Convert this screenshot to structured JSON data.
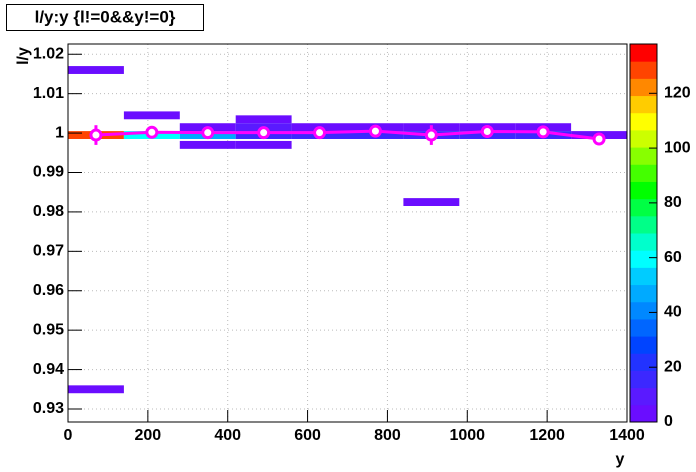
{
  "chart_data": {
    "type": "heatmap",
    "title": "l/y:y {l!=0&&y!=0}",
    "x_label": "y",
    "y_label": "l/y",
    "xlim": [
      0,
      1400
    ],
    "xticks": [
      0,
      200,
      400,
      600,
      800,
      1000,
      1200,
      1400
    ],
    "ylim": [
      0.9267,
      1.0226
    ],
    "yticks": [
      0.93,
      0.94,
      0.95,
      0.96,
      0.97,
      0.98,
      0.99,
      1,
      1.01,
      1.02
    ],
    "zlim": [
      0,
      138
    ],
    "zticks": [
      0,
      20,
      40,
      60,
      80,
      100,
      120
    ],
    "grid": true,
    "palette": [
      "#6a0dff",
      "#5a1aff",
      "#3c28ff",
      "#2233ff",
      "#0044ff",
      "#0066ff",
      "#0088ff",
      "#00aaff",
      "#00ccff",
      "#00ffff",
      "#00ffcc",
      "#00ff88",
      "#00ff44",
      "#00ff00",
      "#44ff00",
      "#88ff00",
      "#ccff00",
      "#ffff00",
      "#ffcc00",
      "#ff8800",
      "#ff4400",
      "#ff0000"
    ],
    "cells": [
      {
        "x0": 0,
        "x1": 140,
        "y0": 0.934,
        "y1": 0.936,
        "z": 2
      },
      {
        "x0": 0,
        "x1": 140,
        "y0": 1.015,
        "y1": 1.017,
        "z": 2
      },
      {
        "x0": 0,
        "x1": 140,
        "y0": 0.9985,
        "y1": 1.0005,
        "z": 130
      },
      {
        "x0": 140,
        "x1": 280,
        "y0": 1.0035,
        "y1": 1.0055,
        "z": 3
      },
      {
        "x0": 140,
        "x1": 280,
        "y0": 0.9985,
        "y1": 1.0005,
        "z": 62
      },
      {
        "x0": 280,
        "x1": 420,
        "y0": 1.0005,
        "y1": 1.0025,
        "z": 5
      },
      {
        "x0": 280,
        "x1": 420,
        "y0": 0.9985,
        "y1": 1.0005,
        "z": 45
      },
      {
        "x0": 280,
        "x1": 420,
        "y0": 0.996,
        "y1": 0.998,
        "z": 3
      },
      {
        "x0": 420,
        "x1": 560,
        "y0": 1.0025,
        "y1": 1.0045,
        "z": 3
      },
      {
        "x0": 420,
        "x1": 560,
        "y0": 1.0005,
        "y1": 1.0025,
        "z": 8
      },
      {
        "x0": 420,
        "x1": 560,
        "y0": 0.9985,
        "y1": 1.0005,
        "z": 18
      },
      {
        "x0": 420,
        "x1": 560,
        "y0": 0.996,
        "y1": 0.998,
        "z": 3
      },
      {
        "x0": 560,
        "x1": 700,
        "y0": 1.0005,
        "y1": 1.0025,
        "z": 6
      },
      {
        "x0": 560,
        "x1": 700,
        "y0": 0.9985,
        "y1": 1.0005,
        "z": 16
      },
      {
        "x0": 700,
        "x1": 840,
        "y0": 1.0005,
        "y1": 1.0025,
        "z": 6
      },
      {
        "x0": 700,
        "x1": 840,
        "y0": 0.9985,
        "y1": 1.0005,
        "z": 16
      },
      {
        "x0": 840,
        "x1": 980,
        "y0": 1.0005,
        "y1": 1.0025,
        "z": 6
      },
      {
        "x0": 840,
        "x1": 980,
        "y0": 0.9985,
        "y1": 1.0005,
        "z": 16
      },
      {
        "x0": 840,
        "x1": 980,
        "y0": 0.9815,
        "y1": 0.9835,
        "z": 3
      },
      {
        "x0": 980,
        "x1": 1120,
        "y0": 1.0005,
        "y1": 1.0025,
        "z": 6
      },
      {
        "x0": 980,
        "x1": 1120,
        "y0": 0.9985,
        "y1": 1.0005,
        "z": 16
      },
      {
        "x0": 1120,
        "x1": 1260,
        "y0": 1.0005,
        "y1": 1.0025,
        "z": 6
      },
      {
        "x0": 1120,
        "x1": 1260,
        "y0": 0.9985,
        "y1": 1.0005,
        "z": 16
      },
      {
        "x0": 1260,
        "x1": 1400,
        "y0": 0.9985,
        "y1": 1.0005,
        "z": 4
      }
    ],
    "profile": {
      "color": "#ff00ff",
      "x": [
        70,
        210,
        350,
        490,
        630,
        770,
        910,
        1050,
        1190,
        1330
      ],
      "values": [
        0.9995,
        1.0002,
        1.0001,
        1.0001,
        1.0001,
        1.0005,
        0.9995,
        1.0004,
        1.0003,
        0.9985
      ],
      "errors": [
        0.0025,
        0.0003,
        0.0003,
        0.0003,
        0.0003,
        0.0003,
        0.0025,
        0.0003,
        0.0003,
        0.0003
      ]
    }
  }
}
